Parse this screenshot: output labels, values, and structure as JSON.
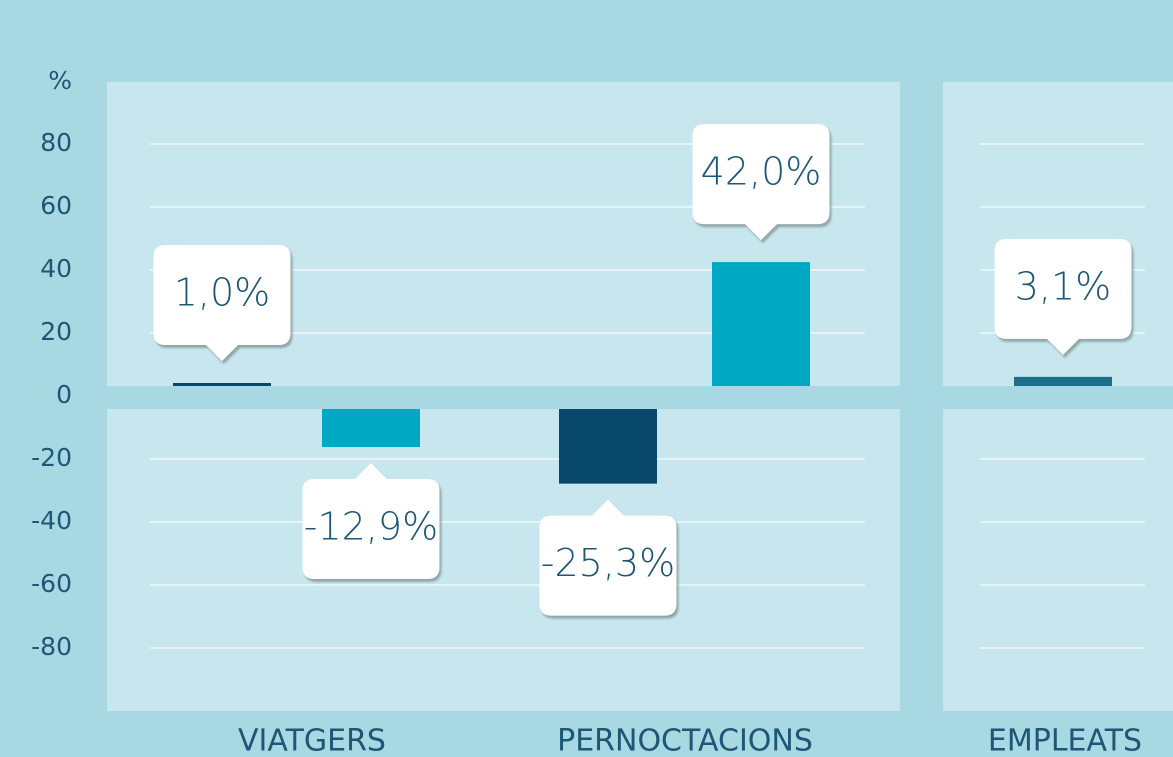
{
  "chart_data": {
    "type": "bar",
    "ylabel": "%",
    "categories": [
      "VIATGERS",
      "PERNOCTACIONS",
      "EMPLEATS"
    ],
    "series": [
      {
        "colors": [
          "#08486a",
          "#08486a",
          "#1b6f88"
        ],
        "values": [
          1.0,
          -25.3,
          3.1
        ],
        "value_labels": [
          "1,0%",
          "-25,3%",
          "3,1%"
        ]
      },
      {
        "color": "#00a8c4",
        "values": [
          -12.9,
          42.0,
          null
        ],
        "value_labels": [
          "-12,9%",
          "42,0%",
          null
        ]
      }
    ],
    "ylim": [
      -100,
      100
    ],
    "yticks": [
      80,
      60,
      40,
      20,
      0,
      -20,
      -40,
      -60,
      -80
    ],
    "grid": true
  }
}
